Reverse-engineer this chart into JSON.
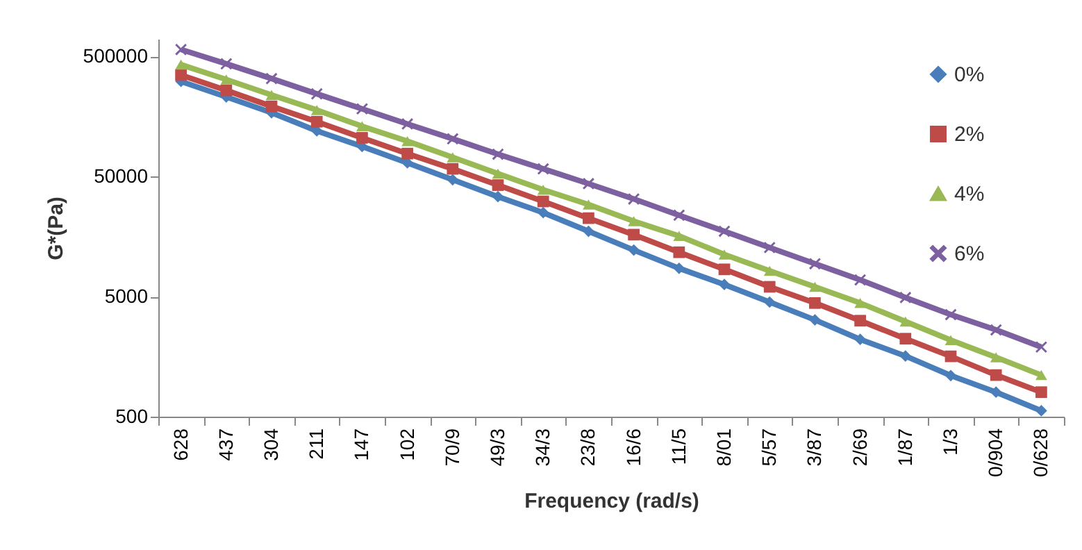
{
  "chart_data": {
    "type": "line",
    "xlabel": "Frequency (rad/s)",
    "ylabel": "G*(Pa)",
    "categories": [
      "628",
      "437",
      "304",
      "211",
      "147",
      "102",
      "70/9",
      "49/3",
      "34/3",
      "23/8",
      "16/6",
      "11/5",
      "8/01",
      "5/57",
      "3/87",
      "2/69",
      "1/87",
      "1/3",
      "0/904",
      "0/628"
    ],
    "log": true,
    "ylim": [
      500,
      700000
    ],
    "yticks": [
      500,
      5000,
      50000,
      500000
    ],
    "grid": false,
    "legend": "top right",
    "series": [
      {
        "name": "0%",
        "color": "#4a7ebb",
        "marker": "diamond",
        "values": [
          310000,
          230000,
          170000,
          120000,
          89000,
          65000,
          47000,
          34000,
          25000,
          17500,
          12200,
          8600,
          6300,
          4500,
          3200,
          2200,
          1600,
          1100,
          800,
          560
        ]
      },
      {
        "name": "2%",
        "color": "#be4b48",
        "marker": "square",
        "values": [
          350000,
          261000,
          192000,
          143000,
          105000,
          77600,
          57900,
          42400,
          31000,
          22500,
          16400,
          11700,
          8430,
          6030,
          4420,
          3150,
          2230,
          1590,
          1110,
          800
        ]
      },
      {
        "name": "4%",
        "color": "#98b954",
        "marker": "triangle",
        "values": [
          427000,
          321000,
          239000,
          179000,
          131000,
          98600,
          72300,
          52800,
          38800,
          29200,
          21200,
          16000,
          11200,
          8200,
          6030,
          4420,
          3100,
          2170,
          1560,
          1110
        ]
      },
      {
        "name": "6%",
        "color": "#7d60a0",
        "marker": "cross",
        "values": [
          571000,
          434000,
          327000,
          244000,
          183000,
          137000,
          103000,
          76700,
          57900,
          43600,
          32500,
          23800,
          17500,
          12800,
          9380,
          6890,
          4910,
          3540,
          2640,
          1900
        ]
      }
    ]
  }
}
